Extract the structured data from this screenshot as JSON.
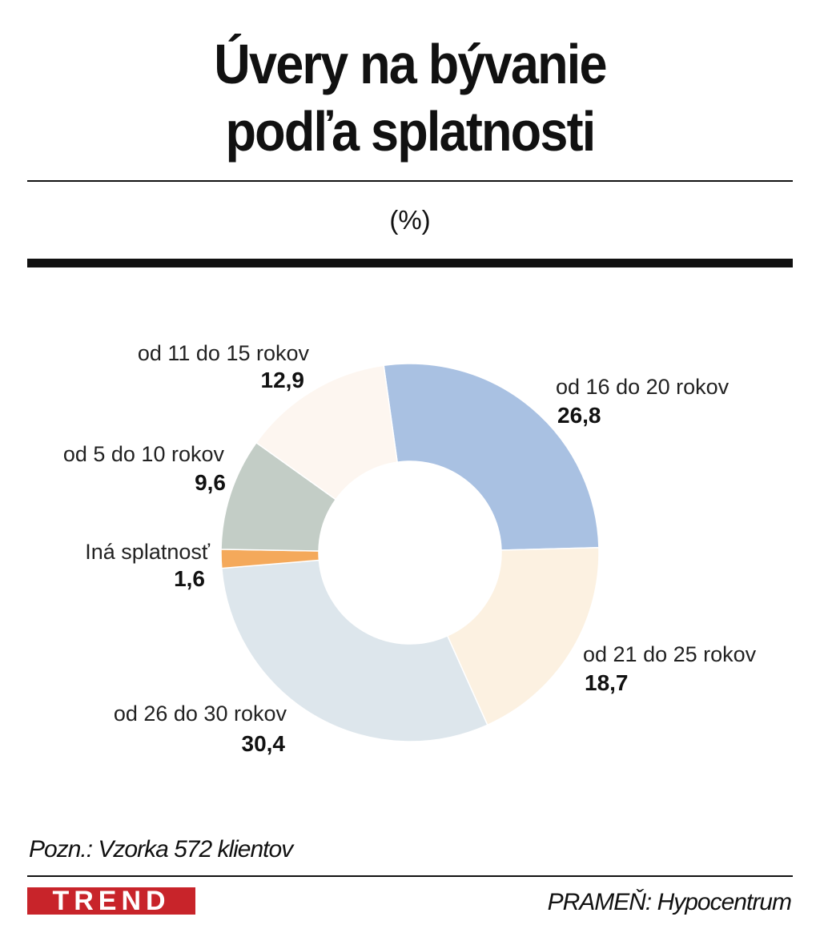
{
  "header": {
    "title_line1": "Úvery na bývanie",
    "title_line2": "podľa splatnosti",
    "unit": "(%)"
  },
  "chart_data": {
    "type": "pie",
    "title": "Úvery na bývanie podľa splatnosti",
    "unit": "(%)",
    "donut": true,
    "slices": [
      {
        "label": "od 16 do 20 rokov",
        "value_label": "26,8",
        "value": 26.8,
        "color": "#a9c1e2"
      },
      {
        "label": "od 21 do 25 rokov",
        "value_label": "18,7",
        "value": 18.7,
        "color": "#fcf1e1"
      },
      {
        "label": "od 26 do 30 rokov",
        "value_label": "30,4",
        "value": 30.4,
        "color": "#dde6ec"
      },
      {
        "label": "Iná splatnosť",
        "value_label": "1,6",
        "value": 1.6,
        "color": "#f4a95b"
      },
      {
        "label": "od 5 do 10 rokov",
        "value_label": "9,6",
        "value": 9.6,
        "color": "#c3cdc6"
      },
      {
        "label": "od 11 do 15 rokov",
        "value_label": "12,9",
        "value": 12.9,
        "color": "#fdf6f0"
      }
    ]
  },
  "footer": {
    "note": "Pozn.: Vzorka 572 klientov",
    "logo": "TREND",
    "source": "PRAMEŇ: Hypocentrum"
  }
}
